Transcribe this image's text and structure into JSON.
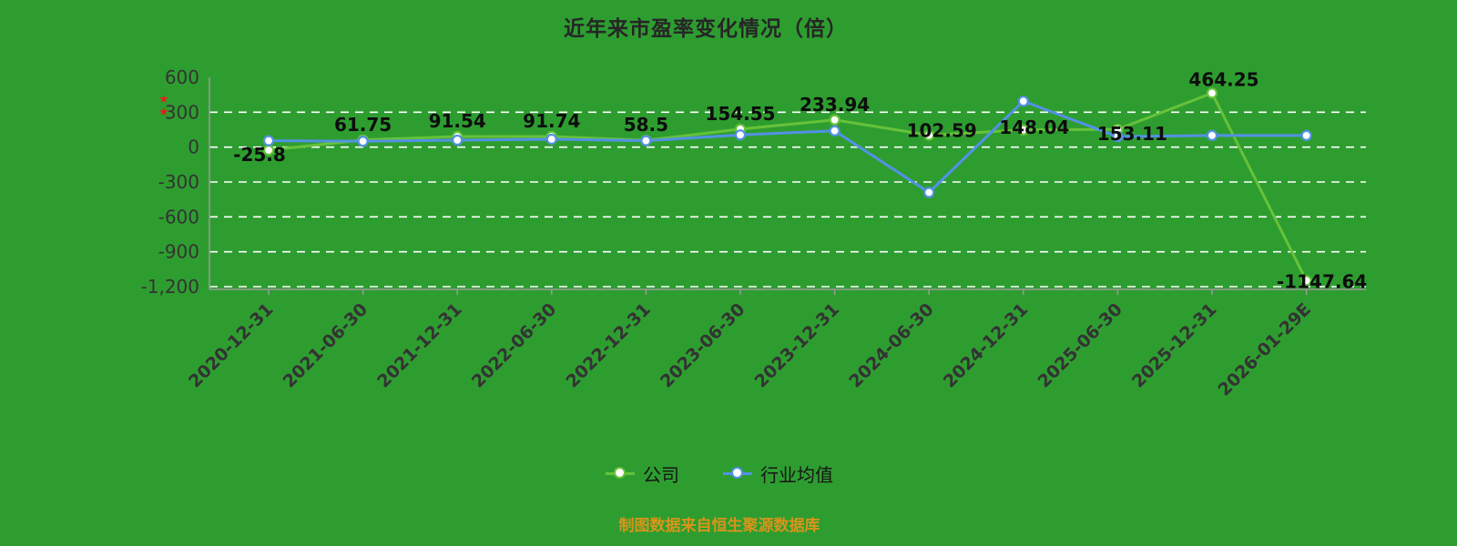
{
  "title": "近年来市盈率变化情况（倍）",
  "source_note": "制图数据来自恒生聚源数据库",
  "red_marker": {
    "glyph": "★"
  },
  "legend": {
    "items": [
      {
        "label": "公司",
        "color": "#66c23a"
      },
      {
        "label": "行业均值",
        "color": "#5391e4"
      }
    ]
  },
  "chart_data": {
    "type": "line",
    "title": "近年来市盈率变化情况（倍）",
    "categories": [
      "2020-12-31",
      "2021-06-30",
      "2021-12-31",
      "2022-06-30",
      "2022-12-31",
      "2023-06-30",
      "2023-12-31",
      "2024-06-30",
      "2024-12-31",
      "2025-06-30",
      "2025-12-31",
      "2026-01-29E"
    ],
    "series": [
      {
        "name": "公司",
        "color": "#66c23a",
        "values": [
          -25.8,
          61.75,
          91.54,
          91.74,
          58.5,
          154.55,
          233.94,
          102.59,
          148.04,
          153.11,
          464.25,
          -1147.64
        ],
        "labels": [
          "-25.8",
          "61.75",
          "91.54",
          "91.74",
          "58.5",
          "154.55",
          "233.94",
          "102.59",
          "148.04",
          "153.11",
          "464.25",
          "-1147.64"
        ],
        "show_labels": true
      },
      {
        "name": "行业均值",
        "color": "#5391e4",
        "values": [
          55,
          50,
          60,
          68,
          55,
          105,
          140,
          -390,
          395,
          90,
          100,
          100
        ],
        "labels": [],
        "show_labels": false
      }
    ],
    "ylim": [
      -1200,
      600
    ],
    "yticks": [
      {
        "value": 600,
        "label": "600"
      },
      {
        "value": 300,
        "label": "300"
      },
      {
        "value": 0,
        "label": "0"
      },
      {
        "value": -300,
        "label": "-300"
      },
      {
        "value": -600,
        "label": "-600"
      },
      {
        "value": -900,
        "label": "-900"
      },
      {
        "value": -1200,
        "label": "-1,200"
      }
    ],
    "grid": "horizontal-dashed-white",
    "legend_position": "bottom"
  }
}
